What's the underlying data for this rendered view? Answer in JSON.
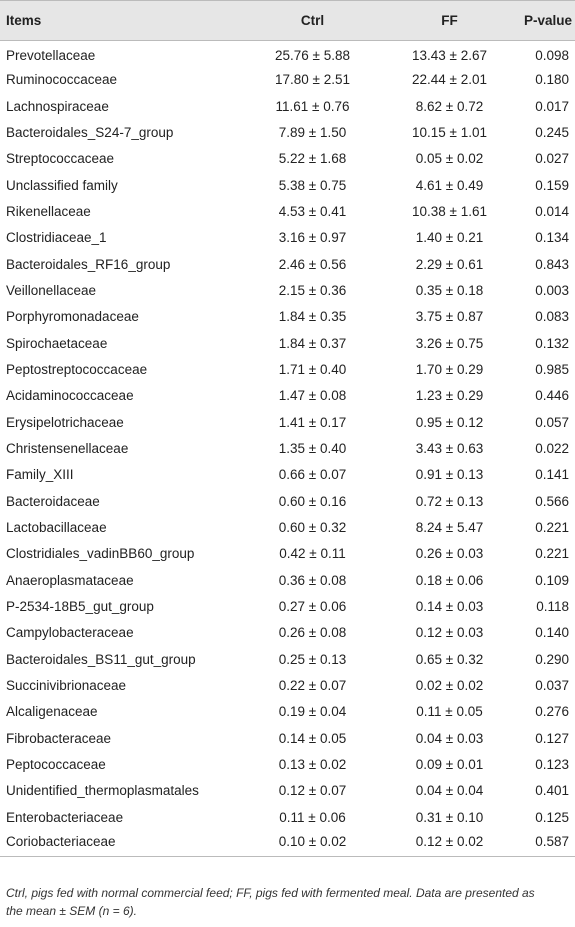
{
  "table": {
    "header": [
      "Items",
      "Ctrl",
      "FF",
      "P-value"
    ],
    "rows": [
      [
        "Prevotellaceae",
        "25.76 ± 5.88",
        "13.43 ± 2.67",
        "0.098"
      ],
      [
        "Ruminococcaceae",
        "17.80 ± 2.51",
        "22.44 ± 2.01",
        "0.180"
      ],
      [
        "Lachnospiraceae",
        "11.61 ± 0.76",
        "8.62 ± 0.72",
        "0.017"
      ],
      [
        "Bacteroidales_S24-7_group",
        "7.89 ± 1.50",
        "10.15 ± 1.01",
        "0.245"
      ],
      [
        "Streptococcaceae",
        "5.22 ± 1.68",
        "0.05 ± 0.02",
        "0.027"
      ],
      [
        "Unclassified family",
        "5.38 ± 0.75",
        "4.61 ± 0.49",
        "0.159"
      ],
      [
        "Rikenellaceae",
        "4.53 ± 0.41",
        "10.38 ± 1.61",
        "0.014"
      ],
      [
        "Clostridiaceae_1",
        "3.16 ± 0.97",
        "1.40 ± 0.21",
        "0.134"
      ],
      [
        "Bacteroidales_RF16_group",
        "2.46 ± 0.56",
        "2.29 ± 0.61",
        "0.843"
      ],
      [
        "Veillonellaceae",
        "2.15 ± 0.36",
        "0.35 ± 0.18",
        "0.003"
      ],
      [
        "Porphyromonadaceae",
        "1.84 ± 0.35",
        "3.75 ± 0.87",
        "0.083"
      ],
      [
        "Spirochaetaceae",
        "1.84 ± 0.37",
        "3.26 ± 0.75",
        "0.132"
      ],
      [
        "Peptostreptococcaceae",
        "1.71 ± 0.40",
        "1.70 ± 0.29",
        "0.985"
      ],
      [
        "Acidaminococcaceae",
        "1.47 ± 0.08",
        "1.23 ± 0.29",
        "0.446"
      ],
      [
        "Erysipelotrichaceae",
        "1.41 ± 0.17",
        "0.95 ± 0.12",
        "0.057"
      ],
      [
        "Christensenellaceae",
        "1.35 ± 0.40",
        "3.43 ± 0.63",
        "0.022"
      ],
      [
        "Family_XIII",
        "0.66 ± 0.07",
        "0.91 ± 0.13",
        "0.141"
      ],
      [
        "Bacteroidaceae",
        "0.60 ± 0.16",
        "0.72 ± 0.13",
        "0.566"
      ],
      [
        "Lactobacillaceae",
        "0.60 ± 0.32",
        "8.24 ± 5.47",
        "0.221"
      ],
      [
        "Clostridiales_vadinBB60_group",
        "0.42 ± 0.11",
        "0.26 ± 0.03",
        "0.221"
      ],
      [
        "Anaeroplasmataceae",
        "0.36 ± 0.08",
        "0.18 ± 0.06",
        "0.109"
      ],
      [
        "P-2534-18B5_gut_group",
        "0.27 ± 0.06",
        "0.14 ± 0.03",
        "0.118"
      ],
      [
        "Campylobacteraceae",
        "0.26 ± 0.08",
        "0.12 ± 0.03",
        "0.140"
      ],
      [
        "Bacteroidales_BS11_gut_group",
        "0.25 ± 0.13",
        "0.65 ± 0.32",
        "0.290"
      ],
      [
        "Succinivibrionaceae",
        "0.22 ± 0.07",
        "0.02 ± 0.02",
        "0.037"
      ],
      [
        "Alcaligenaceae",
        "0.19 ± 0.04",
        "0.11 ± 0.05",
        "0.276"
      ],
      [
        "Fibrobacteraceae",
        "0.14 ± 0.05",
        "0.04 ± 0.03",
        "0.127"
      ],
      [
        "Peptococcaceae",
        "0.13 ± 0.02",
        "0.09 ± 0.01",
        "0.123"
      ],
      [
        "Unidentified_thermoplasmatales",
        "0.12 ± 0.07",
        "0.04 ± 0.04",
        "0.401"
      ],
      [
        "Enterobacteriaceae",
        "0.11 ± 0.06",
        "0.31 ± 0.10",
        "0.125"
      ],
      [
        "Coriobacteriaceae",
        "0.10 ± 0.02",
        "0.12 ± 0.02",
        "0.587"
      ]
    ]
  },
  "footnote": "Ctrl, pigs fed with normal commercial feed; FF, pigs fed with fermented meal. Data are presented as the mean ± SEM (n = 6)."
}
